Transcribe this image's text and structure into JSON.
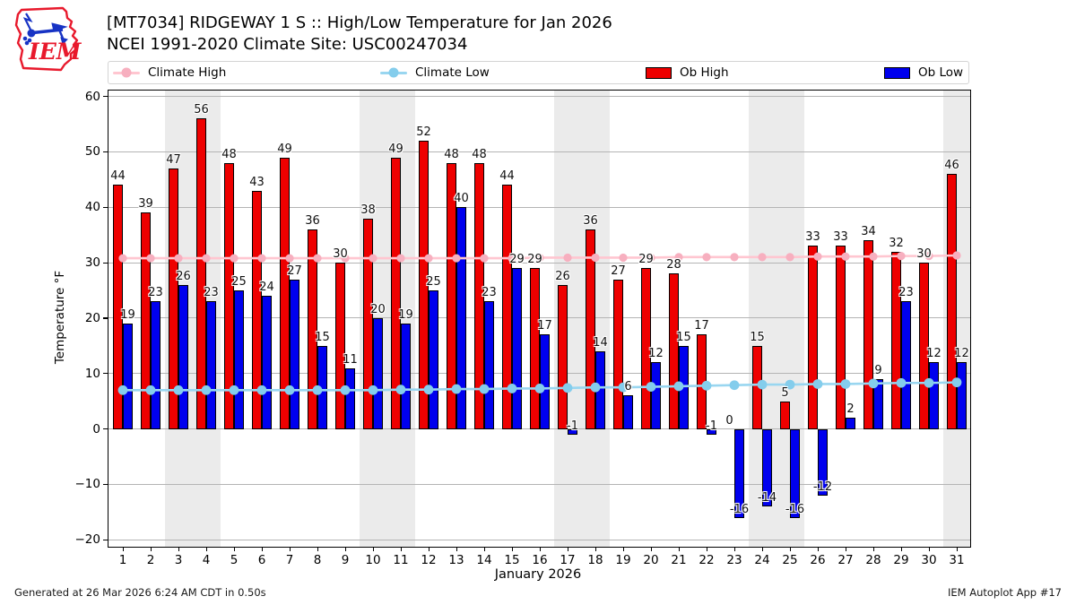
{
  "header": {
    "title_line1": "[MT7034] RIDGEWAY 1 S :: High/Low Temperature for Jan 2026",
    "title_line2": "NCEI 1991-2020 Climate Site: USC00247034",
    "logo_text": "IEM"
  },
  "legend": {
    "items": [
      {
        "label": "Climate High",
        "type": "line-marker",
        "color": "#ffc0cb"
      },
      {
        "label": "Climate Low",
        "type": "line-marker",
        "color": "#87ceeb"
      },
      {
        "label": "Ob High",
        "type": "rect",
        "color": "#ff0000"
      },
      {
        "label": "Ob Low",
        "type": "rect",
        "color": "#0000ff"
      }
    ]
  },
  "axes": {
    "ylabel": "Temperature °F",
    "xlabel": "January 2026",
    "ytick_values": [
      60,
      50,
      40,
      30,
      20,
      10,
      0,
      -10,
      -20
    ],
    "ytick_labels": [
      "60",
      "50",
      "40",
      "30",
      "20",
      "10",
      "0",
      "−10",
      "−20"
    ]
  },
  "footer": {
    "left": "Generated at 26 Mar 2026 6:24 AM CDT in 0.50s",
    "right": "IEM Autoplot App #17"
  },
  "colors": {
    "ob_high": "#ee0000",
    "ob_low": "#0000ee",
    "climate_high_line": "#ffc6d0",
    "climate_high_marker": "#f7afbf",
    "climate_low_line": "#99d6f0",
    "climate_low_marker": "#84cdec",
    "weekend_band": "#ebebeb",
    "gridline": "#b4b4b4",
    "bar_edge": "#000000"
  },
  "chart_data": {
    "type": "bar",
    "title": "[MT7034] RIDGEWAY 1 S :: High/Low Temperature for Jan 2026",
    "subtitle": "NCEI 1991-2020 Climate Site: USC00247034",
    "xlabel": "January 2026",
    "ylabel": "Temperature °F",
    "ylim": [
      -20,
      60
    ],
    "grid": true,
    "legend_position": "top",
    "x": [
      1,
      2,
      3,
      4,
      5,
      6,
      7,
      8,
      9,
      10,
      11,
      12,
      13,
      14,
      15,
      16,
      17,
      18,
      19,
      20,
      21,
      22,
      23,
      24,
      25,
      26,
      27,
      28,
      29,
      30,
      31
    ],
    "series": [
      {
        "name": "Ob High",
        "type": "bar",
        "values": [
          44,
          39,
          47,
          56,
          48,
          43,
          49,
          36,
          30,
          38,
          49,
          52,
          48,
          48,
          44,
          29,
          26,
          36,
          27,
          29,
          28,
          17,
          0,
          15,
          5,
          33,
          33,
          34,
          32,
          30,
          46
        ]
      },
      {
        "name": "Ob Low",
        "type": "bar",
        "values": [
          19,
          23,
          26,
          23,
          25,
          24,
          27,
          15,
          11,
          20,
          19,
          25,
          40,
          23,
          29,
          17,
          -1,
          14,
          6,
          12,
          15,
          -1,
          -16,
          -14,
          -16,
          -12,
          2,
          9,
          23,
          12,
          12
        ]
      },
      {
        "name": "Climate High",
        "type": "line",
        "values": [
          30.8,
          30.8,
          30.8,
          30.8,
          30.8,
          30.8,
          30.8,
          30.8,
          30.8,
          30.8,
          30.8,
          30.8,
          30.8,
          30.8,
          30.8,
          30.9,
          30.9,
          30.9,
          30.9,
          30.9,
          31.0,
          31.0,
          31.0,
          31.0,
          31.0,
          31.1,
          31.1,
          31.1,
          31.2,
          31.2,
          31.3
        ]
      },
      {
        "name": "Climate Low",
        "type": "line",
        "values": [
          7.0,
          7.0,
          7.0,
          7.0,
          7.0,
          7.0,
          7.0,
          7.0,
          7.0,
          7.0,
          7.1,
          7.1,
          7.2,
          7.2,
          7.3,
          7.3,
          7.4,
          7.5,
          7.5,
          7.6,
          7.7,
          7.8,
          7.9,
          8.0,
          8.0,
          8.1,
          8.1,
          8.2,
          8.3,
          8.3,
          8.4
        ]
      }
    ],
    "weekend_shading_days": [
      [
        3,
        4
      ],
      [
        10,
        11
      ],
      [
        17,
        18
      ],
      [
        24,
        25
      ],
      [
        31,
        31
      ]
    ]
  }
}
